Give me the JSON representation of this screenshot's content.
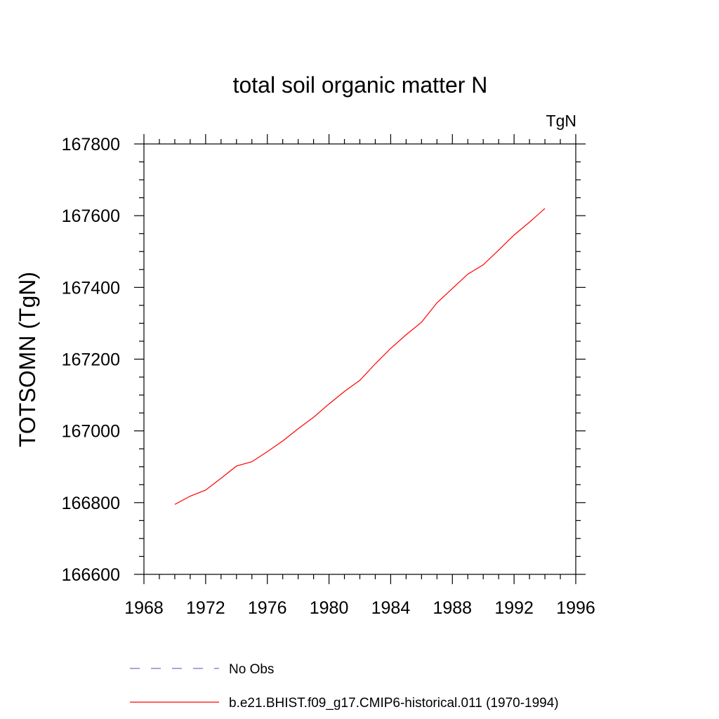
{
  "chart_data": {
    "type": "line",
    "title": "total soil organic matter N",
    "units_label": "TgN",
    "ylabel": "TOTSOMN  (TgN)",
    "xlabel": "",
    "xlim": [
      1968,
      1996
    ],
    "ylim": [
      166600,
      167800
    ],
    "x_ticks": [
      1968,
      1972,
      1976,
      1980,
      1984,
      1988,
      1992,
      1996
    ],
    "y_ticks": [
      166600,
      166800,
      167000,
      167200,
      167400,
      167600,
      167800
    ],
    "grid": false,
    "legend_position": "bottom",
    "series": [
      {
        "name": "b.e21.BHIST.f09_g17.CMIP6-historical.011 (1970-1994)",
        "color": "#ff0000",
        "line_style": "solid",
        "x": [
          1970,
          1971,
          1972,
          1973,
          1974,
          1975,
          1976,
          1977,
          1978,
          1979,
          1980,
          1981,
          1982,
          1983,
          1984,
          1985,
          1986,
          1987,
          1988,
          1989,
          1990,
          1991,
          1992,
          1993,
          1994
        ],
        "y": [
          166795,
          166818,
          166835,
          166868,
          166902,
          166914,
          166942,
          166972,
          167006,
          167038,
          167075,
          167110,
          167141,
          167187,
          167230,
          167268,
          167303,
          167357,
          167397,
          167437,
          167463,
          167504,
          167546,
          167582,
          167620
        ]
      }
    ],
    "legend": [
      {
        "label": "No Obs",
        "color": "#7b6fbf",
        "line_style": "dashed"
      },
      {
        "label": "b.e21.BHIST.f09_g17.CMIP6-historical.011 (1970-1994)",
        "color": "#ff0000",
        "line_style": "solid"
      }
    ]
  }
}
